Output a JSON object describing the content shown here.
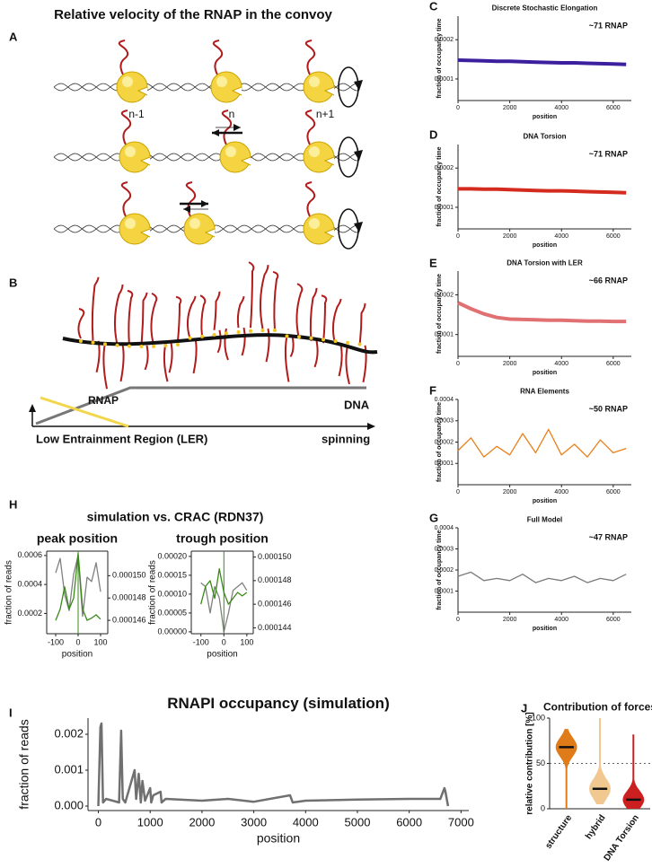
{
  "panel_labels": [
    "A",
    "B",
    "C",
    "D",
    "E",
    "F",
    "G",
    "H",
    "I",
    "J"
  ],
  "panel_a": {
    "title": "Relative velocity of the RNAP in the convoy",
    "labels": [
      "n-1",
      "n",
      "n+1"
    ]
  },
  "panel_b": {
    "rnap": "RNAP",
    "dna": "DNA",
    "ler": "Low Entrainment Region (LER)",
    "spinning": "spinning"
  },
  "panel_h_title": "simulation vs. CRAC (RDN37)",
  "chart_data": [
    {
      "type": "line",
      "title": "Discrete Stochastic Elongation",
      "annotation": "~71 RNAP",
      "xlabel": "position",
      "ylabel": "fraction of occupancy time",
      "color": "#3b1f9e",
      "x": [
        0,
        500,
        1000,
        1500,
        2000,
        2500,
        3000,
        3500,
        4000,
        4500,
        5000,
        5500,
        6000,
        6500
      ],
      "values": [
        0.000148,
        0.000147,
        0.000146,
        0.000145,
        0.000145,
        0.000144,
        0.000143,
        0.000142,
        0.000141,
        0.000141,
        0.00014,
        0.000139,
        0.000138,
        0.000137
      ],
      "xlim": [
        0,
        6700
      ],
      "xticks": [
        0,
        2000,
        4000,
        6000
      ],
      "ylim": [
        4.5e-05,
        0.00026
      ],
      "yticks": [
        0.0001,
        0.0002
      ]
    },
    {
      "type": "line",
      "title": "DNA Torsion",
      "annotation": "~71 RNAP",
      "xlabel": "position",
      "ylabel": "fraction of occupancy time",
      "color": "#d42b1e",
      "x": [
        0,
        500,
        1000,
        1500,
        2000,
        2500,
        3000,
        3500,
        4000,
        4500,
        5000,
        5500,
        6000,
        6500
      ],
      "values": [
        0.000147,
        0.000147,
        0.000146,
        0.000146,
        0.000145,
        0.000144,
        0.000143,
        0.000142,
        0.000142,
        0.000141,
        0.00014,
        0.000139,
        0.000138,
        0.000137
      ],
      "xlim": [
        0,
        6700
      ],
      "xticks": [
        0,
        2000,
        4000,
        6000
      ],
      "ylim": [
        4.5e-05,
        0.00026
      ],
      "yticks": [
        0.0001,
        0.0002
      ]
    },
    {
      "type": "line",
      "title": "DNA Torsion with LER",
      "annotation": "~66 RNAP",
      "xlabel": "position",
      "ylabel": "fraction of occupancy time",
      "color": "#e07072",
      "x": [
        0,
        500,
        1000,
        1500,
        2000,
        2500,
        3000,
        3500,
        4000,
        4500,
        5000,
        5500,
        6000,
        6500
      ],
      "values": [
        0.00018,
        0.000165,
        0.000152,
        0.000143,
        0.000139,
        0.000138,
        0.000137,
        0.000136,
        0.000136,
        0.000135,
        0.000134,
        0.000134,
        0.000133,
        0.000133
      ],
      "xlim": [
        0,
        6700
      ],
      "xticks": [
        0,
        2000,
        4000,
        6000
      ],
      "ylim": [
        4.5e-05,
        0.00026
      ],
      "yticks": [
        0.0001,
        0.0002
      ]
    },
    {
      "type": "line",
      "title": "RNA Elements",
      "annotation": "~50 RNAP",
      "xlabel": "position",
      "ylabel": "fraction of occupancy time",
      "color": "#e8801a",
      "x": [
        0,
        500,
        1000,
        1500,
        2000,
        2500,
        3000,
        3500,
        4000,
        4500,
        5000,
        5500,
        6000,
        6500
      ],
      "values": [
        0.00016,
        0.00022,
        0.00013,
        0.00018,
        0.00014,
        0.00024,
        0.00015,
        0.00026,
        0.00014,
        0.00019,
        0.00013,
        0.00021,
        0.00015,
        0.00017
      ],
      "xlim": [
        0,
        6700
      ],
      "xticks": [
        0,
        2000,
        4000,
        6000
      ],
      "ylim": [
        0,
        0.0004
      ],
      "yticks": [
        0.0001,
        0.0002,
        0.0003,
        0.0004
      ]
    },
    {
      "type": "line",
      "title": "Full Model",
      "annotation": "~47 RNAP",
      "xlabel": "position",
      "ylabel": "fraction of occupancy time",
      "color": "#7a7a7a",
      "x": [
        0,
        500,
        1000,
        1500,
        2000,
        2500,
        3000,
        3500,
        4000,
        4500,
        5000,
        5500,
        6000,
        6500
      ],
      "values": [
        0.00017,
        0.00019,
        0.00015,
        0.00016,
        0.00015,
        0.00018,
        0.00014,
        0.00016,
        0.00015,
        0.00017,
        0.00014,
        0.00016,
        0.00015,
        0.00018
      ],
      "xlim": [
        0,
        6700
      ],
      "xticks": [
        0,
        2000,
        4000,
        6000
      ],
      "ylim": [
        0,
        0.0004
      ],
      "yticks": [
        0.0001,
        0.0002,
        0.0003,
        0.0004
      ]
    },
    {
      "type": "line",
      "title": "peak position",
      "xlabel": "position",
      "ylabel": "fraction of reads",
      "vline": 0,
      "x": [
        -100,
        -80,
        -60,
        -40,
        -20,
        0,
        20,
        40,
        60,
        80,
        100
      ],
      "series": [
        {
          "color": "#808080",
          "values": [
            0.00048,
            0.00058,
            0.00033,
            0.00022,
            0.00047,
            0.0006,
            0.00018,
            0.00045,
            0.00042,
            0.00055,
            0.00035
          ]
        },
        {
          "color": "#3a8a1a",
          "axis": "y2",
          "values": [
            0.000146,
            0.000147,
            0.000149,
            0.000147,
            0.000148,
            0.000152,
            0.000147,
            0.000146,
            0.0001462,
            0.0001465,
            0.0001461
          ]
        }
      ],
      "xlim": [
        -140,
        132
      ],
      "xticks": [
        -100,
        0,
        100
      ],
      "ylim": [
        6e-05,
        0.00063
      ],
      "yticks": [
        0.0002,
        0.0004,
        0.0006
      ],
      "y2lim": [
        0.0001448,
        0.0001522
      ],
      "y2ticks": [
        0.000146,
        0.000148,
        {
          "value": 0.00015,
          "label": "0.000150"
        }
      ]
    },
    {
      "type": "line",
      "title": "trough position",
      "xlabel": "position",
      "ylabel": "fraction of reads",
      "vline": 0,
      "x": [
        -100,
        -80,
        -60,
        -40,
        -20,
        0,
        20,
        40,
        60,
        80,
        100
      ],
      "series": [
        {
          "color": "#808080",
          "values": [
            0.00013,
            0.00012,
            5e-05,
            0.00012,
            9e-05,
            0.0,
            5e-05,
            0.00011,
            0.00012,
            0.00013,
            0.00011
          ]
        },
        {
          "color": "#3a8a1a",
          "axis": "y2",
          "values": [
            0.000146,
            0.0001475,
            0.000148,
            0.0001465,
            0.000149,
            0.000147,
            0.000146,
            0.0001465,
            0.000147,
            0.0001467,
            0.000147
          ]
        }
      ],
      "xlim": [
        -142,
        128
      ],
      "xticks": [
        -100,
        0,
        100
      ],
      "ylim": [
        -5e-06,
        0.000214
      ],
      "yticks": [
        {
          "value": 0,
          "label": "0.00000"
        },
        {
          "value": 5e-05,
          "label": "0.00005"
        },
        {
          "value": 0.0001,
          "label": "0.00010"
        },
        {
          "value": 0.00015,
          "label": "0.00015"
        },
        {
          "value": 0.0002,
          "label": "0.00020"
        }
      ],
      "y2lim": [
        0.0001435,
        0.0001505
      ],
      "y2ticks": [
        0.000144,
        0.000146,
        0.000148,
        {
          "value": 0.00015,
          "label": "0.000150"
        }
      ]
    },
    {
      "type": "line",
      "title": "RNAPI occupancy (simulation)",
      "xlabel": "position",
      "ylabel": "fraction of reads",
      "color": "#707070",
      "x": [
        0,
        40,
        60,
        90,
        150,
        400,
        440,
        470,
        520,
        700,
        730,
        780,
        820,
        850,
        900,
        1000,
        1020,
        1060,
        1200,
        1220,
        1300,
        2000,
        2500,
        3000,
        3700,
        3750,
        4000,
        5000,
        6000,
        6600,
        6680,
        6700,
        6750
      ],
      "values": [
        0.0,
        0.0022,
        0.0023,
        0.0001,
        0.0002,
        0.0001,
        0.0021,
        0.0002,
        0.0001,
        0.001,
        0.0002,
        0.0009,
        0.0001,
        0.0007,
        0.00015,
        0.0005,
        0.0001,
        0.0003,
        0.0004,
        0.0001,
        0.0002,
        0.00015,
        0.0002,
        0.00012,
        0.0003,
        0.0001,
        0.00015,
        0.00018,
        0.0002,
        0.0002,
        0.0005,
        0.0004,
        0.0
      ],
      "xlim": [
        -200,
        7150
      ],
      "xticks": [
        0,
        1000,
        2000,
        3000,
        4000,
        5000,
        6000,
        7000
      ],
      "ylim": [
        -0.000125,
        0.00245
      ],
      "yticks": [
        {
          "value": 0,
          "label": "0.000"
        },
        {
          "value": 0.001,
          "label": "0.001"
        },
        {
          "value": 0.002,
          "label": "0.002"
        }
      ]
    },
    {
      "type": "violin",
      "title": "Contribution of forces",
      "ylabel": "relative contribution [%]",
      "categories": [
        "structure",
        "hybrid",
        "DNA Torsion"
      ],
      "values": [
        68,
        22,
        10
      ],
      "min": [
        0,
        5,
        0
      ],
      "max": [
        88,
        100,
        82
      ],
      "colors": [
        "#e07b1a",
        "#f0c890",
        "#cc2020"
      ],
      "reference_line": 50,
      "ylim": [
        0,
        100
      ],
      "yticks": [
        0,
        50,
        100
      ]
    }
  ]
}
